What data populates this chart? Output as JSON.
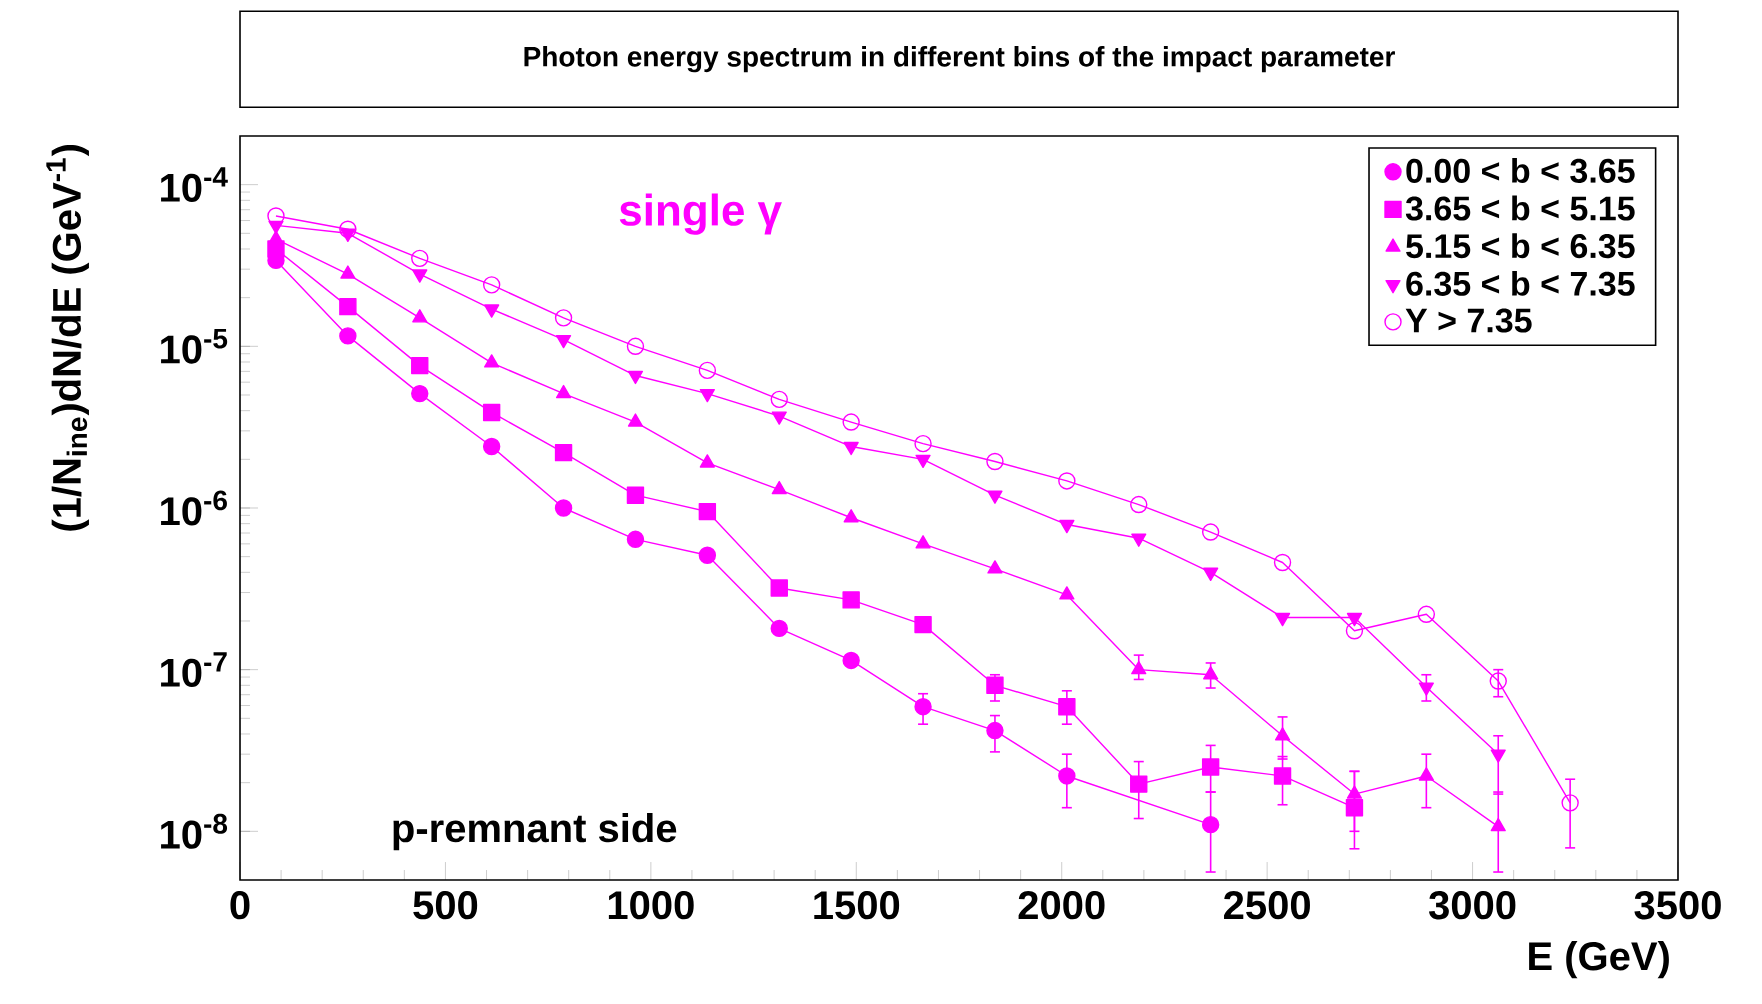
{
  "chart_data": {
    "type": "line",
    "title": "Photon energy spectrum in different bins of the impact parameter",
    "xlabel": "E (GeV)",
    "ylabel": "(1/N$_{ine}$)dN/dE (GeV$^{-1}$)",
    "annotations": [
      "single γ",
      "p-remnant side"
    ],
    "x": [
      87.5,
      262.5,
      437.5,
      612.5,
      787.5,
      962.5,
      1137.5,
      1312.5,
      1487.5,
      1662.5,
      1837.5,
      2012.5,
      2187.5,
      2362.5,
      2537.5,
      2712.5,
      2887.5,
      3062.5,
      3237.5
    ],
    "log": "y",
    "legend": "top right",
    "xlim": [
      0,
      3500
    ],
    "xticks": [
      0,
      500,
      1000,
      1500,
      2000,
      2500,
      3000,
      3500
    ],
    "ylim": [
      5e-09,
      0.0002
    ],
    "yticks": [
      {
        "value": 1e-08,
        "label": "10$^{-8}$"
      },
      {
        "value": 1e-07,
        "label": "10$^{-7}$"
      },
      {
        "value": 1e-06,
        "label": "10$^{-6}$"
      },
      {
        "value": 1e-05,
        "label": "10$^{-5}$"
      },
      {
        "value": 0.0001,
        "label": "10$^{-4}$"
      }
    ],
    "series": [
      {
        "name": "0.00 < b < 3.65",
        "color": "#ff00ff",
        "marker": "circle",
        "values": [
          3.4e-05,
          1.16e-05,
          5.1e-06,
          2.4e-06,
          1e-06,
          6.4e-07,
          5.1e-07,
          1.8e-07,
          1.14e-07,
          5.9e-08,
          4.2e-08,
          2.2e-08,
          null,
          1.1e-08,
          null,
          null,
          null,
          null,
          null
        ],
        "errors": [
          null,
          null,
          null,
          null,
          null,
          null,
          null,
          null,
          null,
          [
            4.6e-08,
            7.1e-08
          ],
          [
            3.1e-08,
            5.2e-08
          ],
          [
            1.4e-08,
            3e-08
          ],
          null,
          [
            5.6e-09,
            1.75e-08
          ],
          null,
          null,
          null,
          null,
          null
        ]
      },
      {
        "name": "3.65 < b < 5.15",
        "color": "#ff00ff",
        "marker": "square",
        "values": [
          4e-05,
          1.76e-05,
          7.6e-06,
          3.9e-06,
          2.2e-06,
          1.2e-06,
          9.5e-07,
          3.2e-07,
          2.7e-07,
          1.9e-07,
          8e-08,
          5.9e-08,
          1.96e-08,
          2.5e-08,
          2.2e-08,
          1.4e-08,
          null,
          null,
          null
        ],
        "errors": [
          null,
          null,
          null,
          null,
          null,
          null,
          null,
          null,
          null,
          null,
          [
            6.4e-08,
            9.3e-08
          ],
          [
            4.6e-08,
            7.4e-08
          ],
          [
            1.2e-08,
            2.7e-08
          ],
          [
            1.75e-08,
            3.4e-08
          ],
          [
            1.46e-08,
            2.9e-08
          ],
          [
            7.8e-09,
            2.35e-08
          ],
          null,
          null,
          null
        ]
      },
      {
        "name": "5.15 < b < 6.35",
        "color": "#ff00ff",
        "marker": "triangle",
        "values": [
          4.6e-05,
          2.8e-05,
          1.5e-05,
          7.9e-06,
          5.1e-06,
          3.4e-06,
          1.9e-06,
          1.3e-06,
          8.7e-07,
          6e-07,
          4.2e-07,
          2.9e-07,
          1e-07,
          9.3e-08,
          3.9e-08,
          1.7e-08,
          2.2e-08,
          1.07e-08,
          null
        ],
        "errors": [
          null,
          null,
          null,
          null,
          null,
          null,
          null,
          null,
          null,
          null,
          null,
          null,
          [
            8.7e-08,
            1.23e-07
          ],
          [
            7.7e-08,
            1.1e-07
          ],
          [
            2.8e-08,
            5.1e-08
          ],
          [
            1e-08,
            2.35e-08
          ],
          [
            1.4e-08,
            3e-08
          ],
          [
            5.6e-09,
            1.75e-08
          ],
          null
        ]
      },
      {
        "name": "6.35 < b < 7.35",
        "color": "#ff00ff",
        "marker": "triangle-down",
        "values": [
          5.6e-05,
          5e-05,
          2.8e-05,
          1.7e-05,
          1.1e-05,
          6.6e-06,
          5.1e-06,
          3.7e-06,
          2.4e-06,
          2e-06,
          1.2e-06,
          7.9e-07,
          6.5e-07,
          4e-07,
          2.1e-07,
          2.1e-07,
          7.8e-08,
          3e-08,
          null
        ],
        "errors": [
          null,
          null,
          null,
          null,
          null,
          null,
          null,
          null,
          null,
          null,
          null,
          null,
          null,
          null,
          null,
          null,
          [
            6.4e-08,
            9.3e-08
          ],
          [
            1.7e-08,
            3.9e-08
          ],
          null
        ]
      },
      {
        "name": "Y > 7.35",
        "color": "#ff00ff",
        "marker": "circle-open",
        "values": [
          6.4e-05,
          5.3e-05,
          3.5e-05,
          2.4e-05,
          1.5e-05,
          1e-05,
          7.1e-06,
          4.7e-06,
          3.4e-06,
          2.5e-06,
          1.94e-06,
          1.47e-06,
          1.05e-06,
          7.1e-07,
          4.6e-07,
          1.74e-07,
          2.2e-07,
          8.5e-08,
          1.5e-08
        ],
        "errors": [
          null,
          null,
          null,
          null,
          null,
          null,
          null,
          null,
          null,
          null,
          null,
          null,
          null,
          null,
          null,
          null,
          null,
          [
            6.8e-08,
            1e-07
          ],
          [
            7.9e-09,
            2.1e-08
          ]
        ]
      }
    ]
  }
}
